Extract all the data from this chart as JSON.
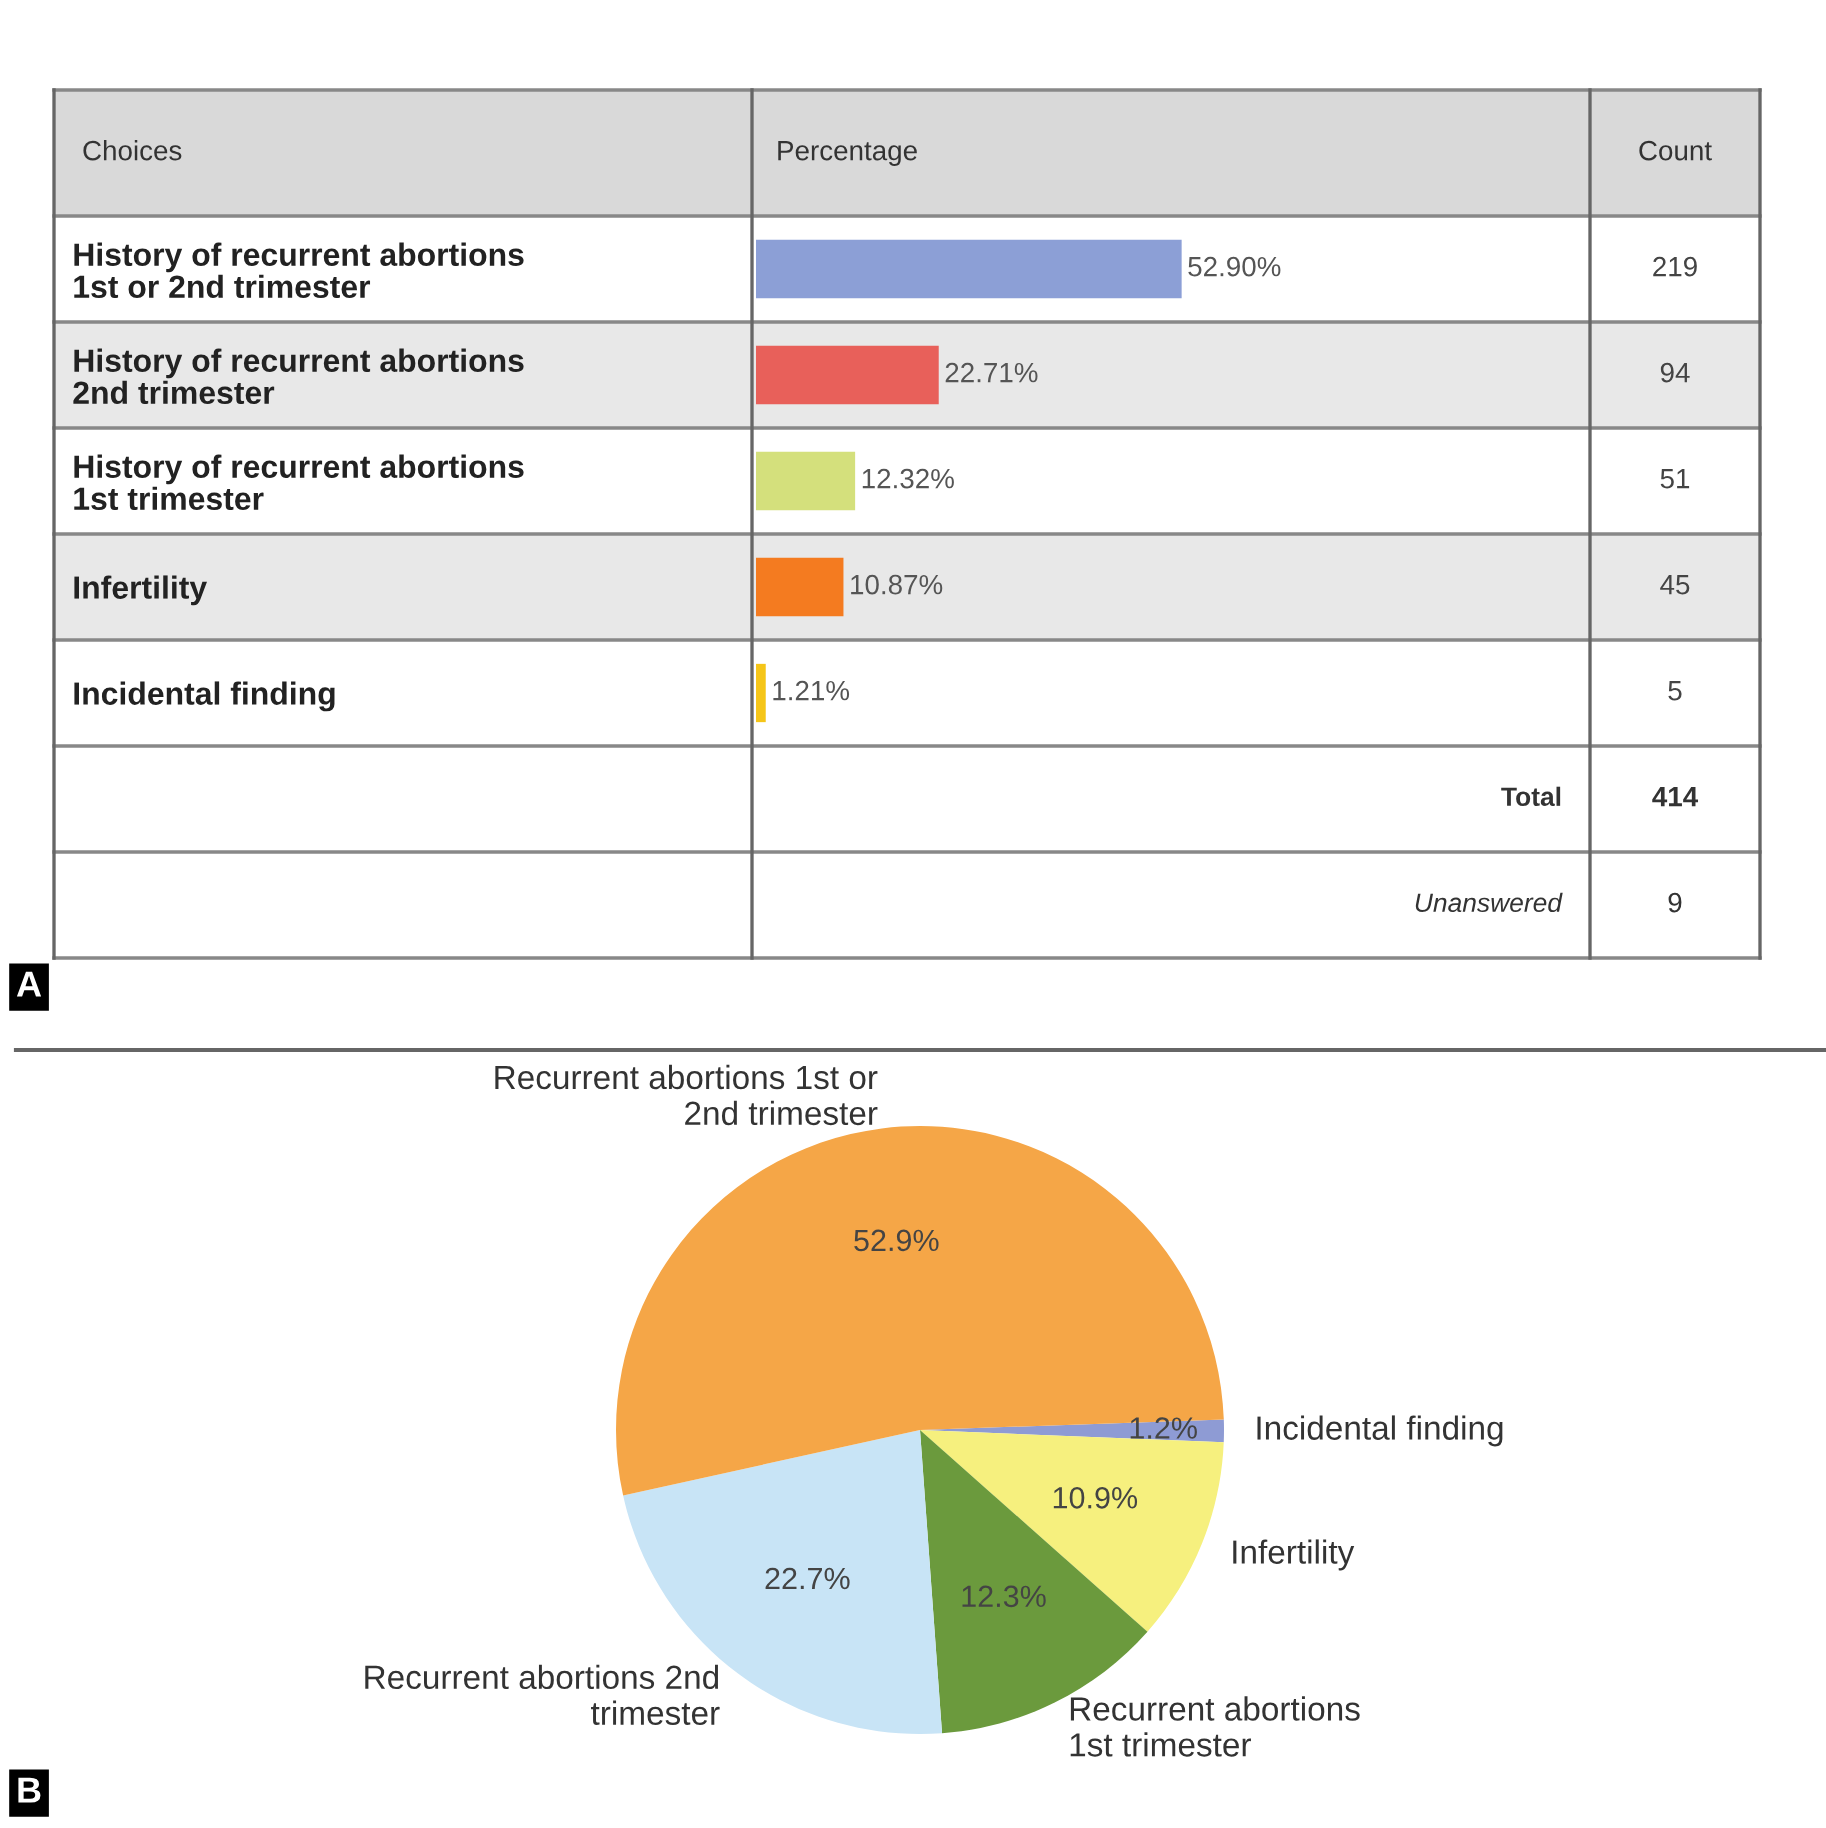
{
  "chart_data": [
    {
      "type": "bar",
      "orientation": "horizontal",
      "categories": [
        "History of recurrent abortions\n1st or 2nd trimester",
        "History of recurrent abortions\n2nd trimester",
        "History of recurrent abortions\n1st trimester",
        "Infertility",
        "Incidental finding"
      ],
      "values": [
        52.9,
        22.71,
        12.32,
        10.87,
        1.21
      ],
      "colors": [
        "#8c9fd6",
        "#e8605a",
        "#d4e07c",
        "#f47b20",
        "#f5c518"
      ],
      "value_labels": [
        "52.90%",
        "22.71%",
        "12.32%",
        "10.87%",
        "1.21%"
      ],
      "annotations": [
        "A",
        "Choices",
        "Percentage",
        "Count",
        "219",
        "94",
        "51",
        "45",
        "5",
        "Total",
        "414",
        "Unanswered",
        "9"
      ]
    },
    {
      "type": "pie",
      "categories": [
        "Incidental finding",
        "Infertility",
        "Recurrent abortions\n1st trimester",
        "Recurrent abortions 2nd\ntrimester",
        "Recurrent abortions 1st or\n2nd trimester"
      ],
      "values": [
        1.2,
        10.9,
        12.3,
        22.7,
        52.9
      ],
      "colors": [
        "#8e9bd4",
        "#f6f07e",
        "#6b9a3d",
        "#c8e4f6",
        "#f5a647"
      ],
      "value_labels": [
        "1.2%",
        "10.9%",
        "12.3%",
        "22.7%",
        "52.9%"
      ],
      "annotations": [
        "B"
      ]
    }
  ]
}
